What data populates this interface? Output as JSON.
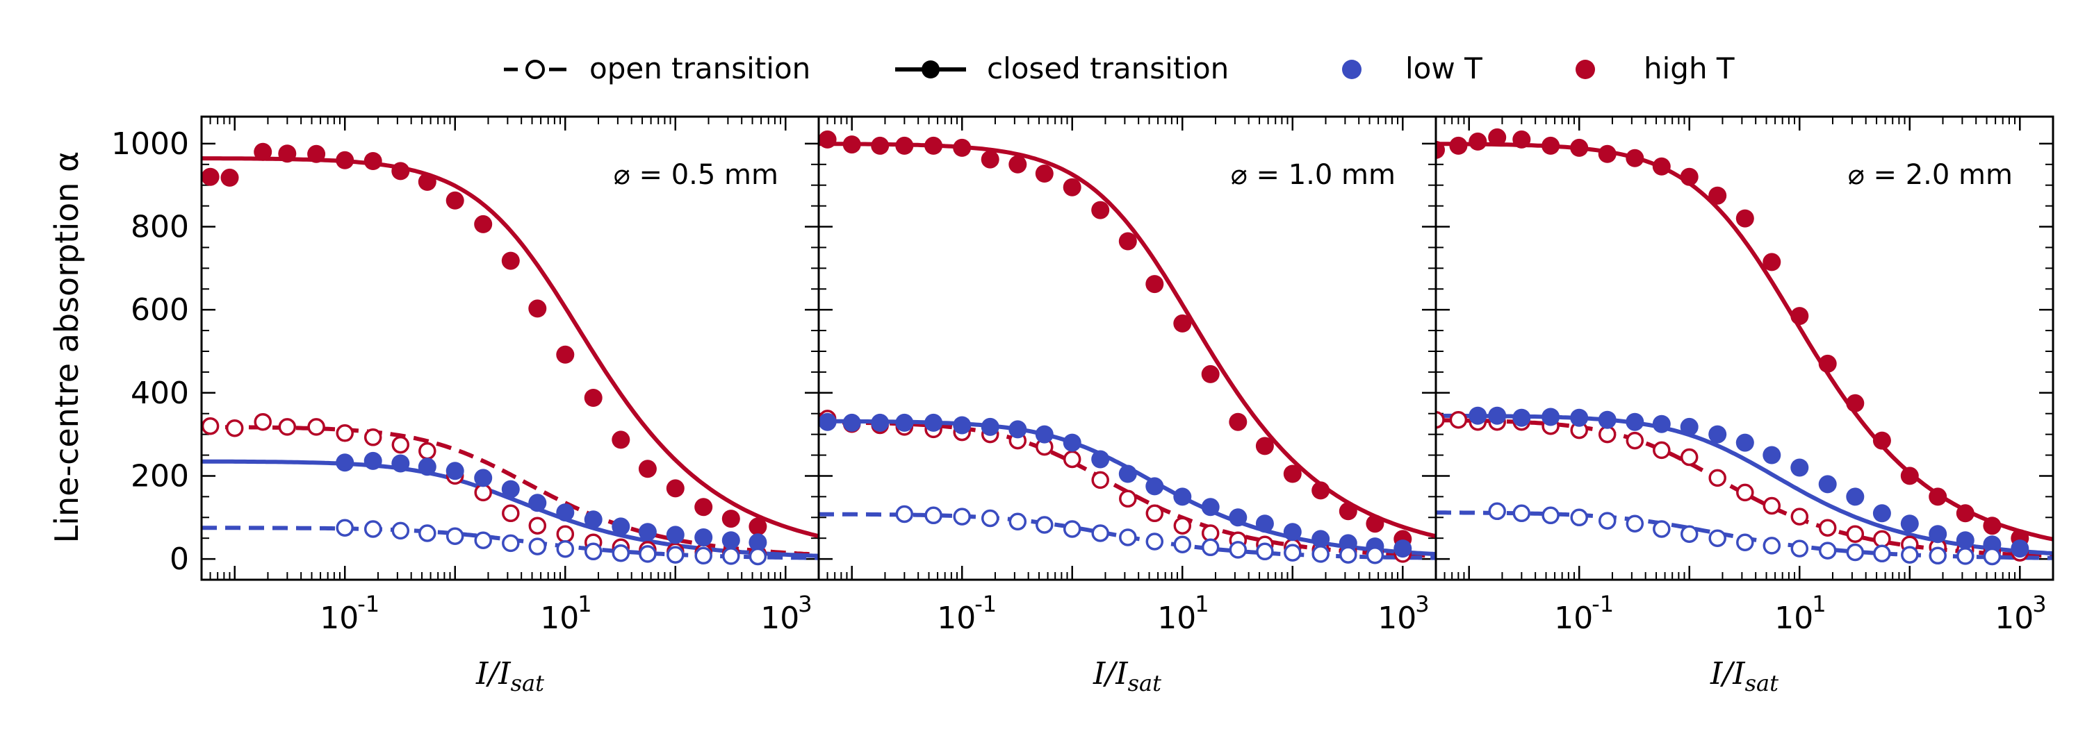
{
  "legend": {
    "open_label": "open transition",
    "closed_label": "closed transition",
    "low_label": "low T",
    "high_label": "high T"
  },
  "colors": {
    "low": "#3a4cc0",
    "high": "#b40426",
    "axis": "#000000"
  },
  "ylabel": "Line-centre absorption α",
  "xlabel": "I/I_sat",
  "chart_data": [
    {
      "type": "scatter",
      "annotation": "⌀ = 0.5 mm",
      "xscale": "log",
      "xlim": [
        0.005,
        2000
      ],
      "ylim": [
        -50,
        1065
      ],
      "yticks": [
        0,
        200,
        400,
        600,
        800,
        1000
      ],
      "xticks": [
        "10^-1",
        "10^1",
        "10^3"
      ],
      "series": [
        {
          "name": "closed transition, high T",
          "kind": "closed",
          "temp": "high",
          "x": [
            0.006,
            0.009,
            0.018,
            0.03,
            0.055,
            0.1,
            0.18,
            0.32,
            0.56,
            1,
            1.8,
            3.2,
            5.6,
            10,
            18,
            32,
            56,
            100,
            180,
            320,
            560
          ],
          "y": [
            920,
            918,
            980,
            976,
            975,
            960,
            958,
            934,
            908,
            863,
            806,
            718,
            603,
            492,
            388,
            287,
            217,
            170,
            125,
            97,
            78
          ],
          "fit": {
            "a": 965,
            "s": 6.5
          }
        },
        {
          "name": "open transition, high T",
          "kind": "open",
          "temp": "high",
          "x": [
            0.006,
            0.01,
            0.018,
            0.03,
            0.055,
            0.1,
            0.18,
            0.32,
            0.56,
            1,
            1.8,
            3.2,
            5.6,
            10,
            18,
            32,
            56,
            100,
            180,
            320,
            560
          ],
          "y": [
            320,
            315,
            330,
            318,
            318,
            303,
            293,
            275,
            260,
            200,
            160,
            110,
            80,
            60,
            40,
            28,
            22,
            18,
            16,
            14,
            12
          ],
          "fit": {
            "a": 318,
            "s": 2.2
          }
        },
        {
          "name": "closed transition, low T",
          "kind": "closed",
          "temp": "low",
          "x": [
            0.1,
            0.18,
            0.32,
            0.56,
            1,
            1.8,
            3.2,
            5.6,
            10,
            18,
            32,
            56,
            100,
            180,
            320,
            560
          ],
          "y": [
            232,
            236,
            230,
            222,
            212,
            195,
            168,
            135,
            112,
            95,
            78,
            65,
            58,
            52,
            45,
            40
          ],
          "fit": {
            "a": 235,
            "s": 2.0
          }
        },
        {
          "name": "open transition, low T",
          "kind": "open",
          "temp": "low",
          "x": [
            0.1,
            0.18,
            0.32,
            0.56,
            1,
            1.8,
            3.2,
            5.6,
            10,
            18,
            32,
            56,
            100,
            180,
            320,
            560
          ],
          "y": [
            75,
            72,
            68,
            62,
            55,
            45,
            38,
            30,
            24,
            18,
            14,
            12,
            10,
            8,
            7,
            6
          ],
          "fit": {
            "a": 75,
            "s": 2.0
          }
        }
      ]
    },
    {
      "type": "scatter",
      "annotation": "⌀ = 1.0 mm",
      "xscale": "log",
      "xlim": [
        0.005,
        2000
      ],
      "ylim": [
        -50,
        1065
      ],
      "yticks": [
        0,
        200,
        400,
        600,
        800,
        1000
      ],
      "xticks": [
        "10^-1",
        "10^1",
        "10^3"
      ],
      "series": [
        {
          "name": "closed transition, high T",
          "kind": "closed",
          "temp": "high",
          "x": [
            0.006,
            0.01,
            0.018,
            0.03,
            0.055,
            0.1,
            0.18,
            0.32,
            0.56,
            1,
            1.8,
            3.2,
            5.6,
            10,
            18,
            32,
            56,
            100,
            180,
            320,
            560,
            1000
          ],
          "y": [
            1010,
            998,
            995,
            995,
            995,
            990,
            962,
            950,
            928,
            895,
            840,
            765,
            662,
            567,
            445,
            330,
            272,
            205,
            165,
            115,
            85,
            48
          ],
          "fit": {
            "a": 1000,
            "s": 6.0
          }
        },
        {
          "name": "open transition, high T",
          "kind": "open",
          "temp": "high",
          "x": [
            0.006,
            0.01,
            0.018,
            0.03,
            0.055,
            0.1,
            0.18,
            0.32,
            0.56,
            1,
            1.8,
            3.2,
            5.6,
            10,
            18,
            32,
            56,
            100,
            180,
            320,
            560,
            1000
          ],
          "y": [
            338,
            325,
            322,
            318,
            312,
            305,
            300,
            285,
            270,
            240,
            190,
            145,
            110,
            80,
            62,
            45,
            35,
            28,
            22,
            18,
            15,
            12
          ],
          "fit": {
            "a": 330,
            "s": 1.0
          }
        },
        {
          "name": "closed transition, low T",
          "kind": "closed",
          "temp": "low",
          "x": [
            0.006,
            0.01,
            0.018,
            0.03,
            0.055,
            0.1,
            0.18,
            0.32,
            0.56,
            1,
            1.8,
            3.2,
            5.6,
            10,
            18,
            32,
            56,
            100,
            180,
            320,
            560,
            1000
          ],
          "y": [
            330,
            328,
            328,
            328,
            328,
            322,
            318,
            312,
            300,
            280,
            240,
            205,
            175,
            150,
            125,
            100,
            85,
            65,
            48,
            38,
            30,
            25
          ],
          "fit": {
            "a": 332,
            "s": 2.5
          }
        },
        {
          "name": "open transition, low T",
          "kind": "open",
          "temp": "low",
          "x": [
            0.03,
            0.055,
            0.1,
            0.18,
            0.32,
            0.56,
            1,
            1.8,
            3.2,
            5.6,
            10,
            18,
            32,
            56,
            100,
            180,
            320,
            560
          ],
          "y": [
            108,
            105,
            102,
            98,
            90,
            82,
            72,
            62,
            52,
            42,
            35,
            28,
            22,
            18,
            15,
            12,
            10,
            9
          ],
          "fit": {
            "a": 108,
            "s": 1.0
          }
        }
      ]
    },
    {
      "type": "scatter",
      "annotation": "⌀ = 2.0 mm",
      "xscale": "log",
      "xlim": [
        0.005,
        2000
      ],
      "ylim": [
        -50,
        1065
      ],
      "yticks": [
        0,
        200,
        400,
        600,
        800,
        1000
      ],
      "xticks": [
        "10^-1",
        "10^1",
        "10^3"
      ],
      "series": [
        {
          "name": "closed transition, high T",
          "kind": "closed",
          "temp": "high",
          "x": [
            0.005,
            0.008,
            0.012,
            0.018,
            0.03,
            0.055,
            0.1,
            0.18,
            0.32,
            0.56,
            1,
            1.8,
            3.2,
            5.6,
            10,
            18,
            32,
            56,
            100,
            180,
            320,
            560,
            1000
          ],
          "y": [
            985,
            995,
            1005,
            1015,
            1010,
            995,
            990,
            975,
            965,
            945,
            920,
            875,
            820,
            715,
            585,
            470,
            375,
            285,
            200,
            150,
            110,
            80,
            50
          ],
          "fit": {
            "a": 1000,
            "s": 4.5
          }
        },
        {
          "name": "open transition, high T",
          "kind": "open",
          "temp": "high",
          "x": [
            0.005,
            0.008,
            0.012,
            0.018,
            0.03,
            0.055,
            0.1,
            0.18,
            0.32,
            0.56,
            1,
            1.8,
            3.2,
            5.6,
            10,
            18,
            32,
            56,
            100,
            180,
            320,
            560,
            1000
          ],
          "y": [
            335,
            335,
            330,
            330,
            330,
            320,
            310,
            300,
            285,
            262,
            245,
            195,
            160,
            128,
            102,
            75,
            60,
            48,
            35,
            28,
            22,
            18,
            15
          ],
          "fit": {
            "a": 335,
            "s": 0.9
          }
        },
        {
          "name": "closed transition, low T",
          "kind": "closed",
          "temp": "low",
          "x": [
            0.012,
            0.018,
            0.03,
            0.055,
            0.1,
            0.18,
            0.32,
            0.56,
            1,
            1.8,
            3.2,
            5.6,
            10,
            18,
            32,
            56,
            100,
            180,
            320,
            560,
            1000
          ],
          "y": [
            345,
            345,
            340,
            342,
            340,
            335,
            330,
            325,
            318,
            300,
            280,
            250,
            220,
            180,
            150,
            110,
            85,
            60,
            45,
            35,
            25
          ],
          "fit": {
            "a": 345,
            "s": 3.0
          }
        },
        {
          "name": "open transition, low T",
          "kind": "open",
          "temp": "low",
          "x": [
            0.018,
            0.03,
            0.055,
            0.1,
            0.18,
            0.32,
            0.56,
            1,
            1.8,
            3.2,
            5.6,
            10,
            18,
            32,
            56,
            100,
            180,
            320,
            560
          ],
          "y": [
            115,
            110,
            105,
            100,
            92,
            85,
            72,
            60,
            50,
            40,
            32,
            25,
            20,
            16,
            13,
            10,
            8,
            7,
            6
          ],
          "fit": {
            "a": 112,
            "s": 0.8
          }
        }
      ]
    }
  ]
}
